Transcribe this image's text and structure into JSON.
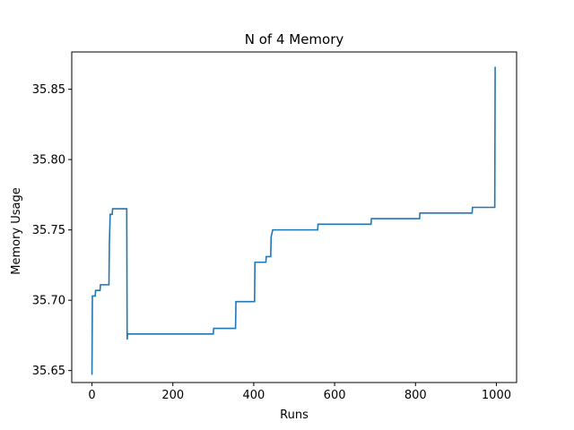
{
  "chart_data": {
    "type": "line",
    "title": "N of 4 Memory",
    "xlabel": "Runs",
    "ylabel": "Memory Usage",
    "xlim": [
      -50,
      1050
    ],
    "ylim": [
      35.6415,
      35.8765
    ],
    "xticks": [
      0,
      200,
      400,
      600,
      800,
      1000
    ],
    "xtick_labels": [
      "0",
      "200",
      "400",
      "600",
      "800",
      "1000"
    ],
    "yticks": [
      35.65,
      35.7,
      35.75,
      35.8,
      35.85
    ],
    "ytick_labels": [
      "35.65",
      "35.70",
      "35.75",
      "35.80",
      "35.85"
    ],
    "grid": false,
    "series": [
      {
        "color": "#1f77b4",
        "x": [
          0,
          1,
          2,
          8,
          9,
          12,
          13,
          20,
          21,
          42,
          43,
          45,
          46,
          50,
          51,
          85,
          86,
          87,
          88,
          90,
          91,
          300,
          301,
          355,
          356,
          402,
          403,
          430,
          431,
          442,
          443,
          447,
          448,
          558,
          559,
          690,
          691,
          810,
          811,
          940,
          941,
          996,
          997
        ],
        "y": [
          35.647,
          35.703,
          35.703,
          35.703,
          35.707,
          35.707,
          35.707,
          35.707,
          35.711,
          35.711,
          35.74,
          35.761,
          35.761,
          35.761,
          35.765,
          35.765,
          35.765,
          35.672,
          35.676,
          35.676,
          35.676,
          35.676,
          35.68,
          35.68,
          35.699,
          35.699,
          35.727,
          35.727,
          35.731,
          35.731,
          35.745,
          35.75,
          35.75,
          35.75,
          35.754,
          35.754,
          35.758,
          35.758,
          35.762,
          35.762,
          35.766,
          35.766,
          35.866
        ]
      }
    ]
  }
}
